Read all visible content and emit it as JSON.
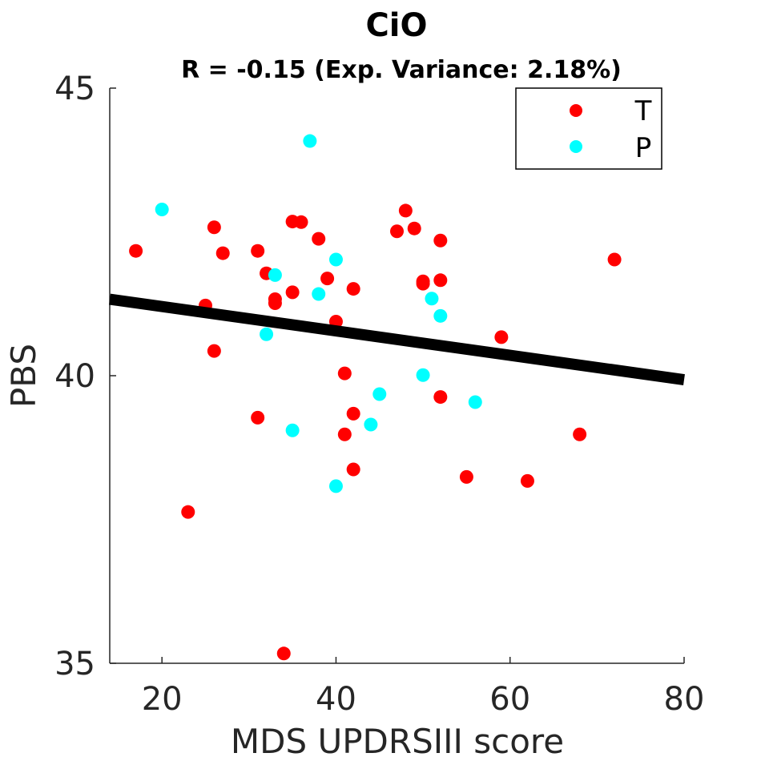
{
  "chart_data": {
    "type": "scatter",
    "title": "CiO",
    "subtitle": "R = -0.15 (Exp. Variance: 2.18%)",
    "xlabel": "MDS UPDRSIII score",
    "ylabel": "PBS",
    "xlim": [
      14,
      80
    ],
    "ylim": [
      35,
      45
    ],
    "xticks": [
      20,
      40,
      60,
      80
    ],
    "yticks": [
      35,
      40,
      45
    ],
    "grid": false,
    "legend_position": "top-right",
    "series": [
      {
        "name": "T",
        "color": "#ff0000",
        "points": [
          [
            17,
            42.17
          ],
          [
            23,
            37.63
          ],
          [
            25,
            41.22
          ],
          [
            26,
            42.58
          ],
          [
            26,
            40.43
          ],
          [
            27,
            42.13
          ],
          [
            31,
            42.17
          ],
          [
            31,
            39.27
          ],
          [
            32,
            41.78
          ],
          [
            33,
            41.26
          ],
          [
            33,
            41.33
          ],
          [
            34,
            35.17
          ],
          [
            35,
            42.68
          ],
          [
            35,
            41.45
          ],
          [
            36,
            42.67
          ],
          [
            38,
            42.38
          ],
          [
            39,
            41.69
          ],
          [
            40,
            40.94
          ],
          [
            41,
            40.04
          ],
          [
            41,
            38.98
          ],
          [
            42,
            41.51
          ],
          [
            42,
            39.34
          ],
          [
            42,
            38.37
          ],
          [
            47,
            42.51
          ],
          [
            48,
            42.87
          ],
          [
            49,
            42.56
          ],
          [
            50,
            41.64
          ],
          [
            50,
            41.6
          ],
          [
            52,
            42.35
          ],
          [
            52,
            41.66
          ],
          [
            52,
            39.63
          ],
          [
            55,
            38.24
          ],
          [
            59,
            40.67
          ],
          [
            62,
            38.17
          ],
          [
            68,
            38.98
          ],
          [
            72,
            42.02
          ]
        ]
      },
      {
        "name": "P",
        "color": "#00ffff",
        "points": [
          [
            20,
            42.89
          ],
          [
            32,
            40.72
          ],
          [
            33,
            41.75
          ],
          [
            35,
            39.05
          ],
          [
            37,
            44.08
          ],
          [
            38,
            41.42
          ],
          [
            40,
            42.02
          ],
          [
            40,
            38.08
          ],
          [
            44,
            39.15
          ],
          [
            45,
            39.68
          ],
          [
            50,
            40.01
          ],
          [
            51,
            41.34
          ],
          [
            52,
            41.04
          ],
          [
            56,
            39.54
          ]
        ]
      }
    ],
    "fit_line": {
      "color": "#000000",
      "x": [
        14,
        80
      ],
      "y": [
        41.33,
        39.93
      ]
    }
  }
}
